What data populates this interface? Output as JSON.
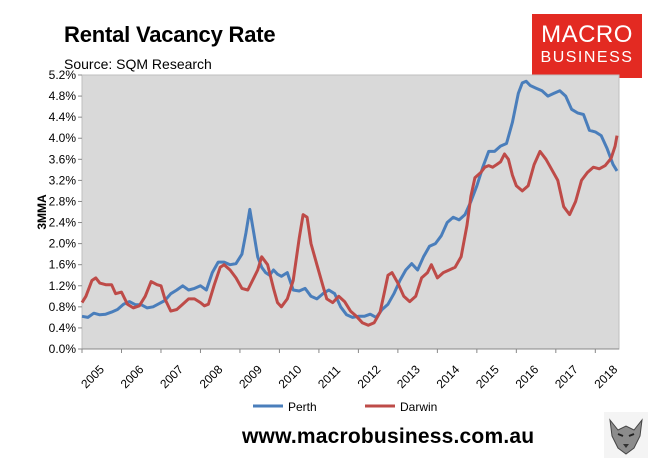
{
  "header": {
    "title": "Rental Vacancy Rate",
    "subtitle": "Source: SQM Research"
  },
  "logo": {
    "line1": "MACRO",
    "line2": "BUSINESS",
    "color": "#e32a22"
  },
  "footer": {
    "url": "www.macrobusiness.com.au"
  },
  "colors": {
    "perth": "#4a7ebb",
    "darwin": "#be4b48",
    "plot_bg": "#d9d9d9"
  },
  "chart_data": {
    "type": "line",
    "title": "Rental Vacancy Rate",
    "ylabel": "3MMA",
    "xlabel": "",
    "xlim": [
      2005.0,
      2018.6
    ],
    "ylim": [
      0.0,
      5.2
    ],
    "y_ticks": [
      "0.0%",
      "0.4%",
      "0.8%",
      "1.2%",
      "1.6%",
      "2.0%",
      "2.4%",
      "2.8%",
      "3.2%",
      "3.6%",
      "4.0%",
      "4.4%",
      "4.8%",
      "5.2%"
    ],
    "x_ticks": [
      "2005",
      "2006",
      "2007",
      "2008",
      "2009",
      "2010",
      "2011",
      "2012",
      "2013",
      "2014",
      "2015",
      "2016",
      "2017",
      "2018"
    ],
    "grid": false,
    "legend": "bottom",
    "series": [
      {
        "name": "Perth",
        "color": "#4a7ebb",
        "points": [
          [
            2005.0,
            0.62
          ],
          [
            2005.15,
            0.6
          ],
          [
            2005.3,
            0.68
          ],
          [
            2005.45,
            0.65
          ],
          [
            2005.6,
            0.66
          ],
          [
            2005.75,
            0.7
          ],
          [
            2005.9,
            0.75
          ],
          [
            2006.05,
            0.85
          ],
          [
            2006.2,
            0.9
          ],
          [
            2006.35,
            0.84
          ],
          [
            2006.5,
            0.84
          ],
          [
            2006.65,
            0.78
          ],
          [
            2006.8,
            0.8
          ],
          [
            2006.95,
            0.86
          ],
          [
            2007.1,
            0.92
          ],
          [
            2007.25,
            1.05
          ],
          [
            2007.4,
            1.12
          ],
          [
            2007.55,
            1.2
          ],
          [
            2007.7,
            1.12
          ],
          [
            2007.85,
            1.15
          ],
          [
            2008.0,
            1.2
          ],
          [
            2008.15,
            1.12
          ],
          [
            2008.3,
            1.45
          ],
          [
            2008.45,
            1.65
          ],
          [
            2008.6,
            1.65
          ],
          [
            2008.75,
            1.6
          ],
          [
            2008.9,
            1.62
          ],
          [
            2009.05,
            1.8
          ],
          [
            2009.15,
            2.2
          ],
          [
            2009.25,
            2.65
          ],
          [
            2009.35,
            2.2
          ],
          [
            2009.45,
            1.75
          ],
          [
            2009.55,
            1.55
          ],
          [
            2009.65,
            1.45
          ],
          [
            2009.75,
            1.4
          ],
          [
            2009.85,
            1.5
          ],
          [
            2009.95,
            1.42
          ],
          [
            2010.05,
            1.38
          ],
          [
            2010.2,
            1.45
          ],
          [
            2010.35,
            1.12
          ],
          [
            2010.5,
            1.1
          ],
          [
            2010.65,
            1.15
          ],
          [
            2010.8,
            1.0
          ],
          [
            2010.95,
            0.95
          ],
          [
            2011.1,
            1.05
          ],
          [
            2011.25,
            1.12
          ],
          [
            2011.4,
            1.05
          ],
          [
            2011.55,
            0.8
          ],
          [
            2011.7,
            0.65
          ],
          [
            2011.85,
            0.6
          ],
          [
            2012.0,
            0.62
          ],
          [
            2012.15,
            0.62
          ],
          [
            2012.3,
            0.66
          ],
          [
            2012.45,
            0.6
          ],
          [
            2012.6,
            0.75
          ],
          [
            2012.75,
            0.85
          ],
          [
            2012.9,
            1.05
          ],
          [
            2013.05,
            1.3
          ],
          [
            2013.2,
            1.5
          ],
          [
            2013.35,
            1.62
          ],
          [
            2013.5,
            1.5
          ],
          [
            2013.65,
            1.75
          ],
          [
            2013.8,
            1.95
          ],
          [
            2013.95,
            2.0
          ],
          [
            2014.1,
            2.15
          ],
          [
            2014.25,
            2.4
          ],
          [
            2014.4,
            2.5
          ],
          [
            2014.55,
            2.45
          ],
          [
            2014.7,
            2.55
          ],
          [
            2014.85,
            2.8
          ],
          [
            2015.0,
            3.1
          ],
          [
            2015.15,
            3.45
          ],
          [
            2015.3,
            3.75
          ],
          [
            2015.45,
            3.75
          ],
          [
            2015.6,
            3.85
          ],
          [
            2015.75,
            3.9
          ],
          [
            2015.9,
            4.3
          ],
          [
            2016.05,
            4.85
          ],
          [
            2016.15,
            5.05
          ],
          [
            2016.25,
            5.08
          ],
          [
            2016.35,
            5.0
          ],
          [
            2016.5,
            4.95
          ],
          [
            2016.65,
            4.9
          ],
          [
            2016.8,
            4.8
          ],
          [
            2016.95,
            4.85
          ],
          [
            2017.1,
            4.9
          ],
          [
            2017.25,
            4.8
          ],
          [
            2017.4,
            4.55
          ],
          [
            2017.55,
            4.48
          ],
          [
            2017.7,
            4.45
          ],
          [
            2017.85,
            4.15
          ],
          [
            2018.0,
            4.12
          ],
          [
            2018.15,
            4.05
          ],
          [
            2018.3,
            3.8
          ],
          [
            2018.45,
            3.5
          ],
          [
            2018.55,
            3.38
          ]
        ]
      },
      {
        "name": "Darwin",
        "color": "#be4b48",
        "points": [
          [
            2005.0,
            0.88
          ],
          [
            2005.1,
            1.0
          ],
          [
            2005.25,
            1.3
          ],
          [
            2005.35,
            1.35
          ],
          [
            2005.45,
            1.25
          ],
          [
            2005.6,
            1.22
          ],
          [
            2005.75,
            1.22
          ],
          [
            2005.85,
            1.05
          ],
          [
            2006.0,
            1.08
          ],
          [
            2006.15,
            0.85
          ],
          [
            2006.3,
            0.78
          ],
          [
            2006.45,
            0.82
          ],
          [
            2006.6,
            1.0
          ],
          [
            2006.75,
            1.28
          ],
          [
            2006.9,
            1.22
          ],
          [
            2007.0,
            1.2
          ],
          [
            2007.1,
            0.95
          ],
          [
            2007.25,
            0.72
          ],
          [
            2007.4,
            0.75
          ],
          [
            2007.55,
            0.85
          ],
          [
            2007.7,
            0.95
          ],
          [
            2007.85,
            0.95
          ],
          [
            2008.0,
            0.88
          ],
          [
            2008.1,
            0.82
          ],
          [
            2008.2,
            0.85
          ],
          [
            2008.35,
            1.22
          ],
          [
            2008.5,
            1.55
          ],
          [
            2008.6,
            1.6
          ],
          [
            2008.75,
            1.5
          ],
          [
            2008.9,
            1.35
          ],
          [
            2009.05,
            1.15
          ],
          [
            2009.2,
            1.12
          ],
          [
            2009.35,
            1.35
          ],
          [
            2009.45,
            1.5
          ],
          [
            2009.55,
            1.75
          ],
          [
            2009.7,
            1.6
          ],
          [
            2009.85,
            1.15
          ],
          [
            2009.95,
            0.88
          ],
          [
            2010.05,
            0.8
          ],
          [
            2010.2,
            0.95
          ],
          [
            2010.35,
            1.3
          ],
          [
            2010.5,
            2.1
          ],
          [
            2010.6,
            2.55
          ],
          [
            2010.7,
            2.5
          ],
          [
            2010.8,
            2.0
          ],
          [
            2010.95,
            1.6
          ],
          [
            2011.1,
            1.2
          ],
          [
            2011.2,
            0.95
          ],
          [
            2011.35,
            0.88
          ],
          [
            2011.5,
            1.0
          ],
          [
            2011.65,
            0.9
          ],
          [
            2011.8,
            0.72
          ],
          [
            2011.95,
            0.62
          ],
          [
            2012.1,
            0.5
          ],
          [
            2012.25,
            0.45
          ],
          [
            2012.4,
            0.5
          ],
          [
            2012.55,
            0.7
          ],
          [
            2012.65,
            1.05
          ],
          [
            2012.75,
            1.4
          ],
          [
            2012.85,
            1.45
          ],
          [
            2013.0,
            1.25
          ],
          [
            2013.15,
            1.0
          ],
          [
            2013.3,
            0.9
          ],
          [
            2013.45,
            1.0
          ],
          [
            2013.6,
            1.35
          ],
          [
            2013.75,
            1.45
          ],
          [
            2013.85,
            1.6
          ],
          [
            2014.0,
            1.35
          ],
          [
            2014.15,
            1.45
          ],
          [
            2014.3,
            1.5
          ],
          [
            2014.45,
            1.55
          ],
          [
            2014.6,
            1.75
          ],
          [
            2014.75,
            2.35
          ],
          [
            2014.85,
            2.9
          ],
          [
            2014.95,
            3.25
          ],
          [
            2015.1,
            3.35
          ],
          [
            2015.2,
            3.45
          ],
          [
            2015.3,
            3.48
          ],
          [
            2015.4,
            3.45
          ],
          [
            2015.5,
            3.5
          ],
          [
            2015.6,
            3.55
          ],
          [
            2015.7,
            3.7
          ],
          [
            2015.8,
            3.6
          ],
          [
            2015.9,
            3.3
          ],
          [
            2016.0,
            3.1
          ],
          [
            2016.15,
            3.0
          ],
          [
            2016.3,
            3.1
          ],
          [
            2016.45,
            3.5
          ],
          [
            2016.6,
            3.75
          ],
          [
            2016.75,
            3.6
          ],
          [
            2016.9,
            3.4
          ],
          [
            2017.05,
            3.2
          ],
          [
            2017.2,
            2.7
          ],
          [
            2017.35,
            2.55
          ],
          [
            2017.5,
            2.8
          ],
          [
            2017.65,
            3.2
          ],
          [
            2017.8,
            3.35
          ],
          [
            2017.95,
            3.45
          ],
          [
            2018.1,
            3.42
          ],
          [
            2018.25,
            3.48
          ],
          [
            2018.4,
            3.62
          ],
          [
            2018.5,
            3.85
          ],
          [
            2018.55,
            4.05
          ]
        ]
      }
    ]
  }
}
